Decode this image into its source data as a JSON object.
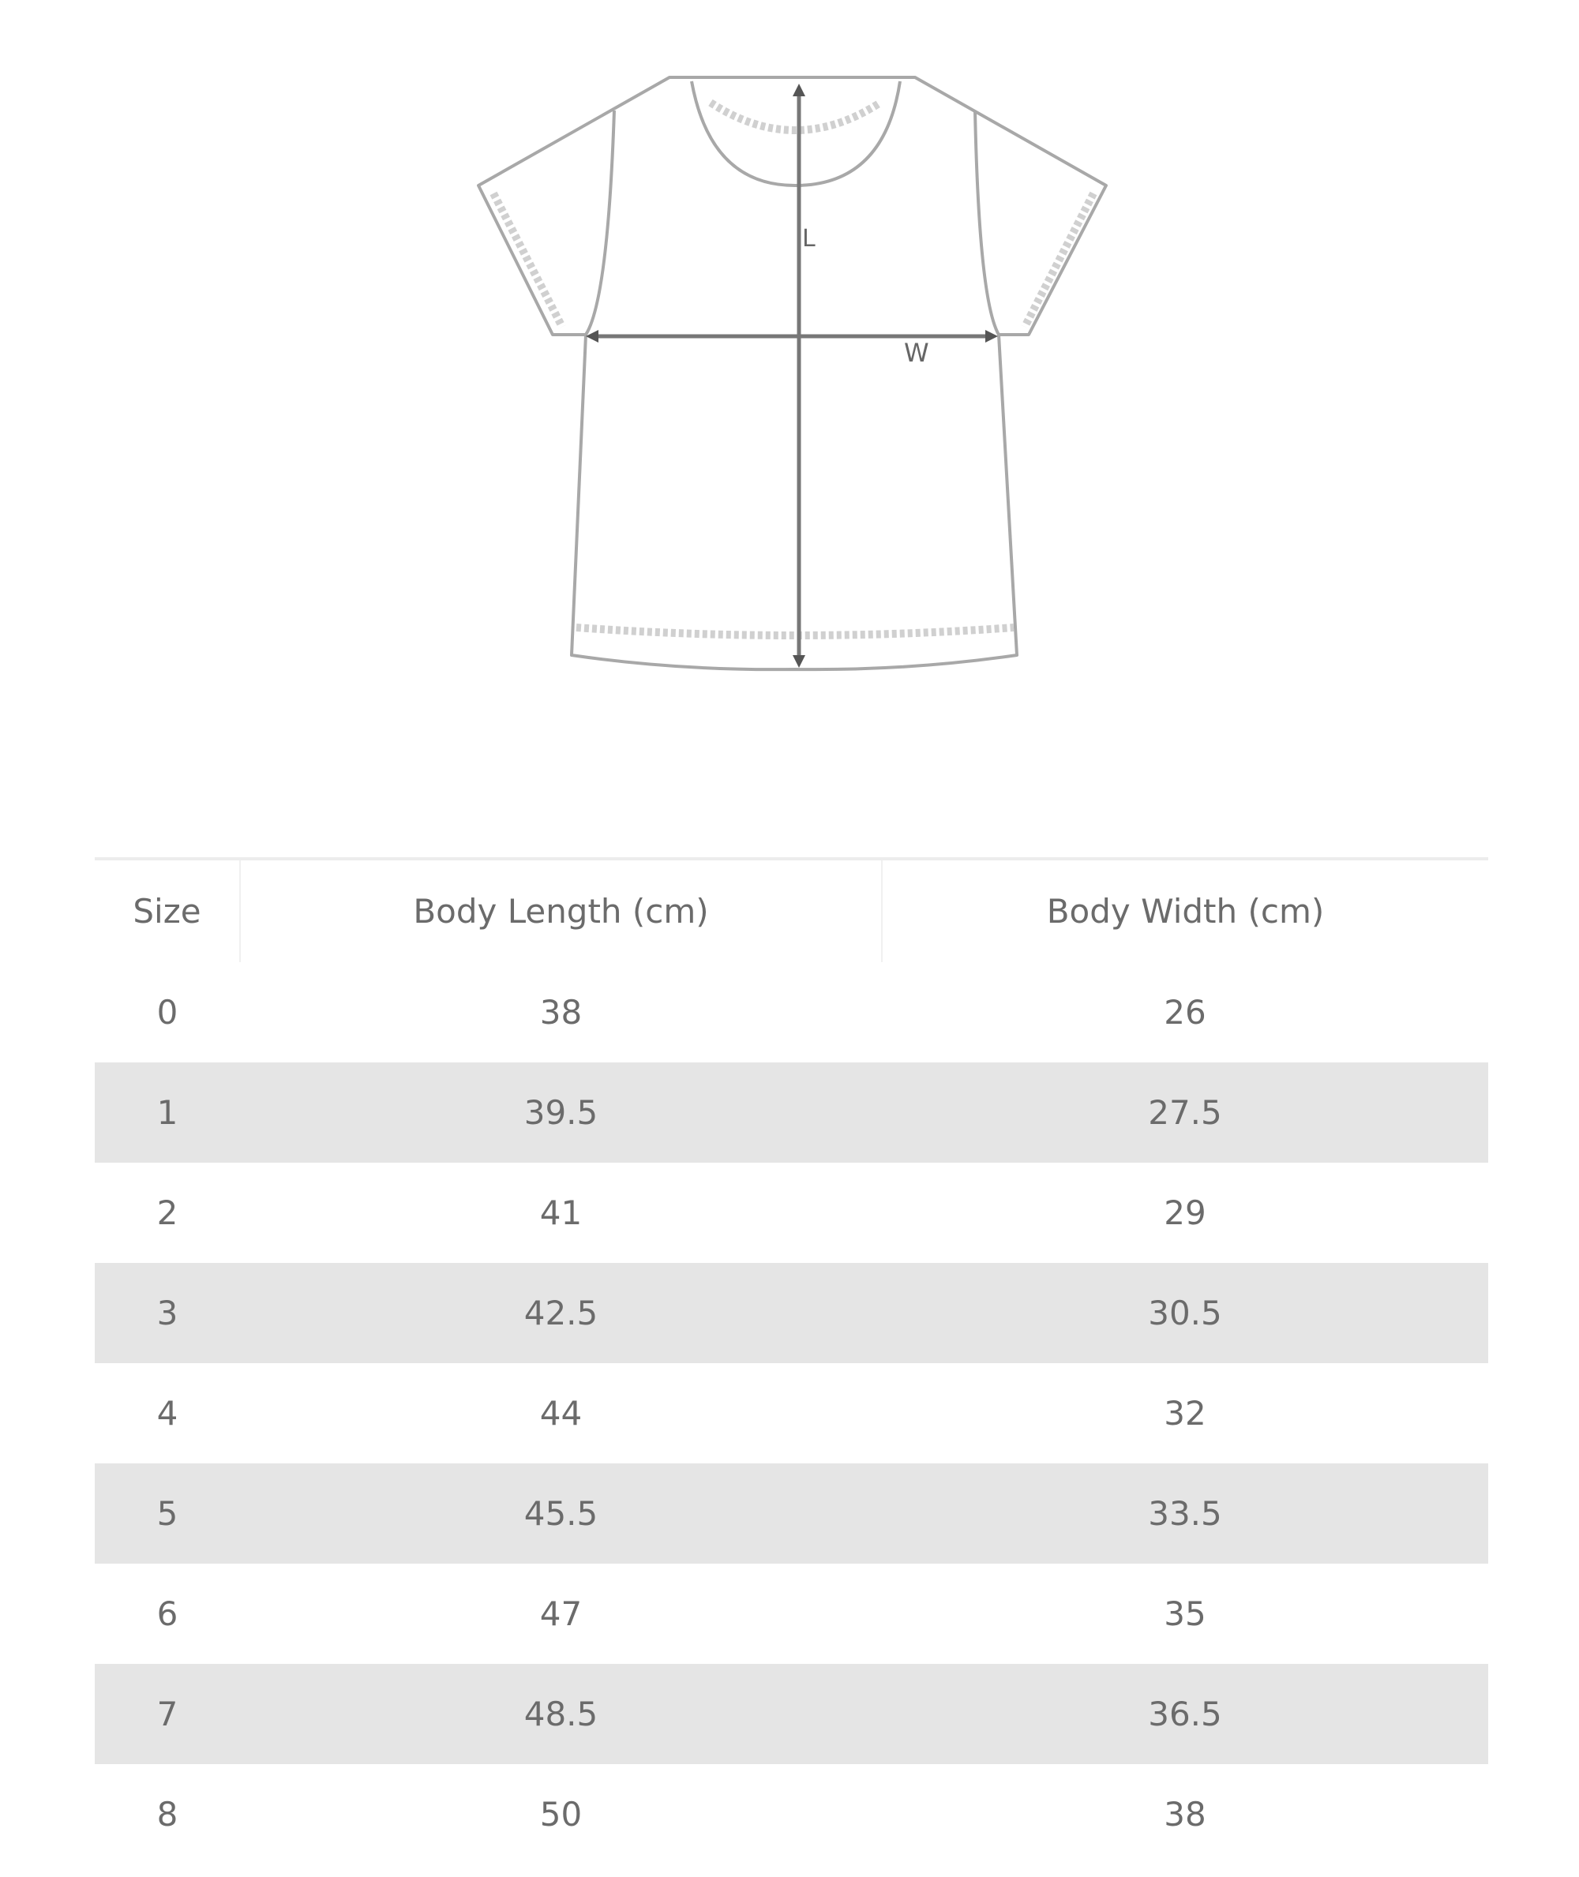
{
  "diagram": {
    "length_label": "L",
    "width_label": "W"
  },
  "table": {
    "headers": [
      "Size",
      "Body Length (cm)",
      "Body Width (cm)"
    ],
    "rows": [
      [
        "0",
        "38",
        "26"
      ],
      [
        "1",
        "39.5",
        "27.5"
      ],
      [
        "2",
        "41",
        "29"
      ],
      [
        "3",
        "42.5",
        "30.5"
      ],
      [
        "4",
        "44",
        "32"
      ],
      [
        "5",
        "45.5",
        "33.5"
      ],
      [
        "6",
        "47",
        "35"
      ],
      [
        "7",
        "48.5",
        "36.5"
      ],
      [
        "8",
        "50",
        "38"
      ]
    ],
    "stripe_color": "#e5e5e5",
    "text_color": "#6b6b6b"
  }
}
